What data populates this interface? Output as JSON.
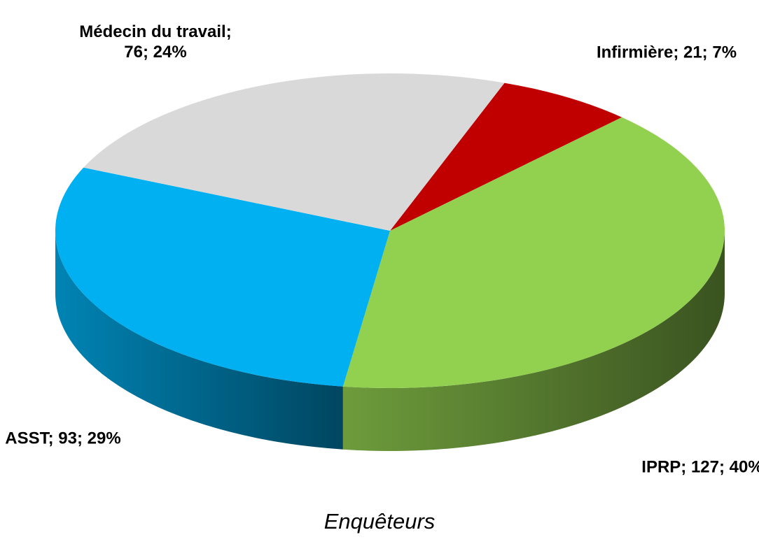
{
  "chart_data": {
    "type": "pie",
    "title": "Enquêteurs",
    "categories": [
      "Infirmière",
      "IPRP",
      "ASST",
      "Médecin du travail"
    ],
    "values": [
      21,
      127,
      93,
      76
    ],
    "value_labels": [
      "Infirmière; 21; 7%",
      "IPRP; 127; 40%",
      "ASST; 93; 29%",
      "Médecin du travail; 76; 24%"
    ],
    "colors": [
      "#c00000",
      "#92d050",
      "#00b0f0",
      "#d9d9d9"
    ]
  }
}
